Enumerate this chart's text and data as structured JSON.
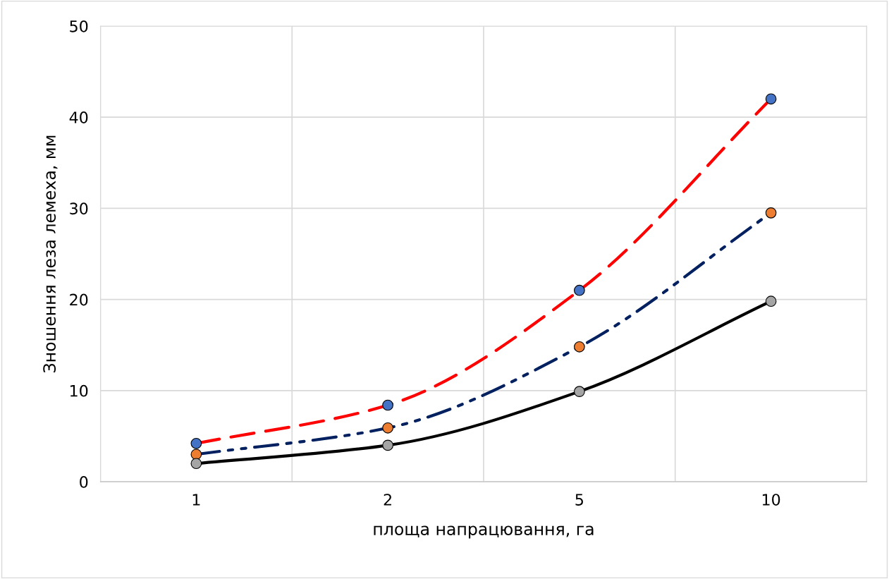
{
  "chart_data": {
    "type": "line",
    "xlabel": "площа напрацювання, га",
    "ylabel": "Зношення леза лемеха, мм",
    "categories": [
      "1",
      "2",
      "5",
      "10"
    ],
    "series": [
      {
        "color": "#ff0000",
        "line_style": "dashed",
        "values": [
          4.2,
          8.4,
          21,
          42
        ]
      },
      {
        "color": "#002060",
        "line_style": "dashdotdot",
        "values": [
          3,
          5.9,
          14.8,
          29.5
        ]
      },
      {
        "color": "#000000",
        "line_style": "solid",
        "values": [
          2,
          4,
          9.9,
          19.8
        ]
      },
      {
        "type": "scatter",
        "color": "#4472c4",
        "marker": "circle",
        "values": [
          4.2,
          8.4,
          21,
          42
        ]
      },
      {
        "type": "scatter",
        "color": "#ed7d31",
        "marker": "circle",
        "values": [
          3,
          5.9,
          14.8,
          29.5
        ]
      },
      {
        "type": "scatter",
        "color": "#a5a5a5",
        "marker": "circle",
        "values": [
          2,
          4,
          9.9,
          19.8
        ]
      }
    ],
    "ylim": [
      0,
      50
    ],
    "yticks": [
      0,
      10,
      20,
      30,
      40,
      50
    ],
    "grid": true,
    "legend": false
  }
}
